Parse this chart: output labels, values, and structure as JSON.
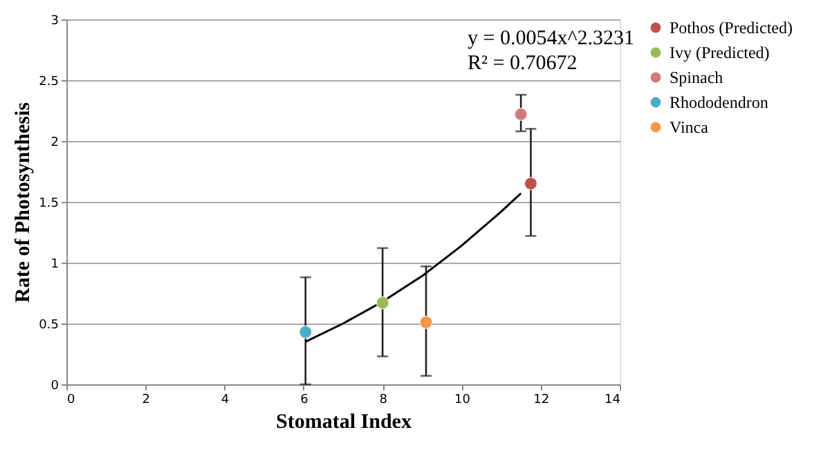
{
  "chart_data": {
    "type": "scatter",
    "xlabel": "Stomatal Index",
    "ylabel": "Rate of Photosynthesis",
    "xlim": [
      0,
      14
    ],
    "xticks": [
      0,
      2,
      4,
      6,
      8,
      10,
      12,
      14
    ],
    "ylim": [
      0,
      3
    ],
    "yticks": [
      0,
      0.5,
      1,
      1.5,
      2,
      2.5,
      3
    ],
    "grid": "y",
    "legend": "right",
    "marker": "circle",
    "annotations": [
      "y = 0.0054x^2.3231",
      "R² = 0.70672"
    ],
    "series": [
      {
        "name": "Pothos (Predicted)",
        "color": "#c0504d",
        "x": [
          11.75
        ],
        "values": [
          1.65
        ],
        "errors": [
          [
            1.22,
            2.1
          ]
        ]
      },
      {
        "name": "Ivy (Predicted)",
        "color": "#9bbb59",
        "x": [
          8
        ],
        "values": [
          0.67
        ],
        "errors": [
          [
            0.23,
            1.12
          ]
        ]
      },
      {
        "name": "Spinach",
        "color": "#d07b7f",
        "x": [
          11.5
        ],
        "values": [
          2.22
        ],
        "errors": [
          [
            2.08,
            2.38
          ]
        ]
      },
      {
        "name": "Rhododendron",
        "color": "#4bacc6",
        "x": [
          6.05
        ],
        "values": [
          0.43
        ],
        "errors": [
          [
            0,
            0.88
          ]
        ]
      },
      {
        "name": "Vinca",
        "color": "#f79646",
        "x": [
          9.1
        ],
        "values": [
          0.51
        ],
        "errors": [
          [
            0.07,
            0.97
          ]
        ]
      },
      {
        "type": "line",
        "color": "#000000",
        "marker": "none",
        "x": [
          6.05,
          7,
          8,
          9,
          10,
          11,
          11.5
        ],
        "values": [
          0.35,
          0.5,
          0.68,
          0.89,
          1.14,
          1.42,
          1.57
        ]
      }
    ]
  }
}
